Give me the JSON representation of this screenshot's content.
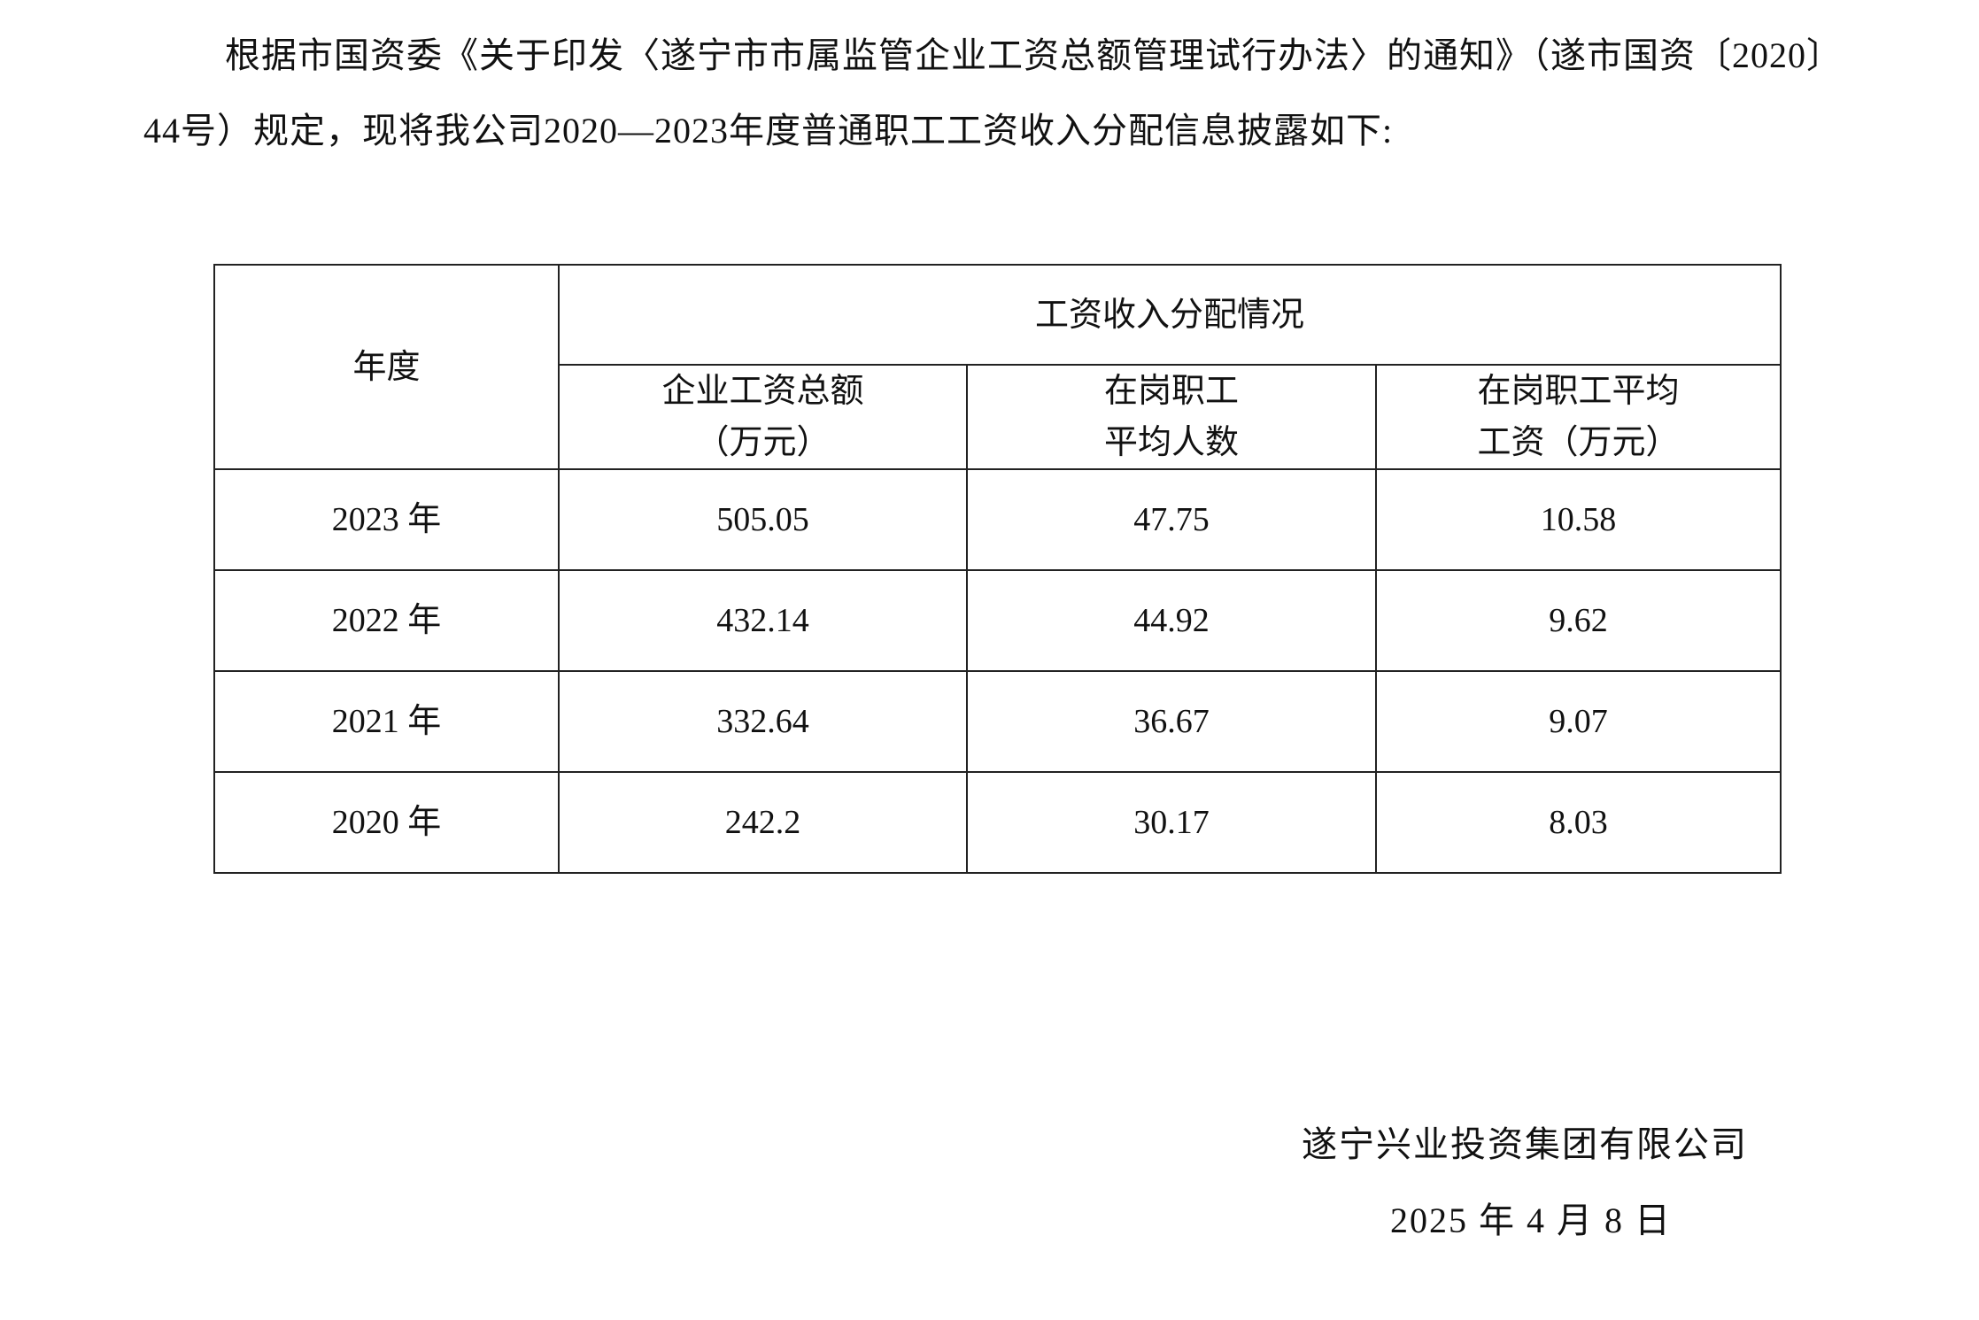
{
  "intro": {
    "line1": "根据市国资委《关于印发〈遂宁市市属监管企业工资总额管理试行办法〉的通知》（遂市国资〔2020〕",
    "line2": "44号）规定，现将我公司2020—2023年度普通职工工资收入分配信息披露如下:"
  },
  "table": {
    "year_header": "年度",
    "group_header": "工资收入分配情况",
    "columns": [
      {
        "line1": "企业工资总额",
        "line2": "（万元）"
      },
      {
        "line1": "在岗职工",
        "line2": "平均人数"
      },
      {
        "line1": "在岗职工平均",
        "line2": "工资（万元）"
      }
    ],
    "rows": [
      {
        "year": "2023 年",
        "total": "505.05",
        "headcount": "47.75",
        "avg": "10.58"
      },
      {
        "year": "2022 年",
        "total": "432.14",
        "headcount": "44.92",
        "avg": "9.62"
      },
      {
        "year": "2021 年",
        "total": "332.64",
        "headcount": "36.67",
        "avg": "9.07"
      },
      {
        "year": "2020 年",
        "total": "242.2",
        "headcount": "30.17",
        "avg": "8.03"
      }
    ]
  },
  "signature": {
    "company": "遂宁兴业投资集团有限公司",
    "date": "2025 年 4 月 8 日"
  }
}
